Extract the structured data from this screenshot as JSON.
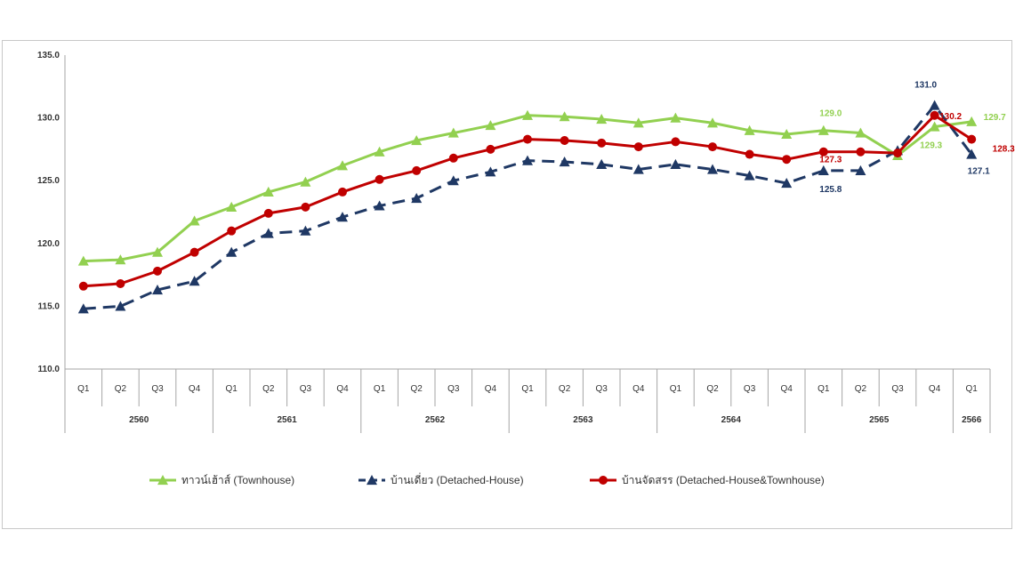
{
  "chart_data": {
    "type": "line",
    "ylim": [
      110.0,
      135.0
    ],
    "yticks": [
      "110.0",
      "115.0",
      "120.0",
      "125.0",
      "130.0",
      "135.0"
    ],
    "categories": [
      "Q1",
      "Q2",
      "Q3",
      "Q4",
      "Q1",
      "Q2",
      "Q3",
      "Q4",
      "Q1",
      "Q2",
      "Q3",
      "Q4",
      "Q1",
      "Q2",
      "Q3",
      "Q4",
      "Q1",
      "Q2",
      "Q3",
      "Q4",
      "Q1",
      "Q2",
      "Q3",
      "Q4",
      "Q1"
    ],
    "years": [
      {
        "label": "2560",
        "count": 4
      },
      {
        "label": "2561",
        "count": 4
      },
      {
        "label": "2562",
        "count": 4
      },
      {
        "label": "2563",
        "count": 4
      },
      {
        "label": "2564",
        "count": 4
      },
      {
        "label": "2565",
        "count": 4
      },
      {
        "label": "2566",
        "count": 1
      }
    ],
    "grid": false,
    "legend_position": "bottom",
    "series": [
      {
        "name": "ทาวน์เฮ้าส์ (Townhouse)",
        "color": "#92d050",
        "marker": "triangle",
        "dash": false,
        "values": [
          118.6,
          118.7,
          119.3,
          121.8,
          122.9,
          124.1,
          124.9,
          126.2,
          127.3,
          128.2,
          128.8,
          129.4,
          130.2,
          130.1,
          129.9,
          129.6,
          130.0,
          129.6,
          129.0,
          128.7,
          129.0,
          128.8,
          127.0,
          129.3,
          129.7
        ],
        "labels": [
          {
            "index": 20,
            "text": "129.0"
          },
          {
            "index": 23,
            "text": "129.3"
          },
          {
            "index": 24,
            "text": "129.7"
          }
        ]
      },
      {
        "name": "บ้านเดี่ยว (Detached-House)",
        "color": "#1f3864",
        "marker": "triangle",
        "dash": true,
        "values": [
          114.8,
          115.0,
          116.3,
          117.0,
          119.3,
          120.8,
          121.0,
          122.1,
          123.0,
          123.6,
          125.0,
          125.7,
          126.6,
          126.5,
          126.3,
          125.9,
          126.3,
          125.9,
          125.4,
          124.8,
          125.8,
          125.8,
          127.4,
          131.0,
          127.1
        ],
        "labels": [
          {
            "index": 20,
            "text": "125.8"
          },
          {
            "index": 23,
            "text": "131.0"
          },
          {
            "index": 24,
            "text": "127.1"
          }
        ]
      },
      {
        "name": "บ้านจัดสรร (Detached-House&Townhouse)",
        "color": "#c00000",
        "marker": "circle",
        "dash": false,
        "values": [
          116.6,
          116.8,
          117.8,
          119.3,
          121.0,
          122.4,
          122.9,
          124.1,
          125.1,
          125.8,
          126.8,
          127.5,
          128.3,
          128.2,
          128.0,
          127.7,
          128.1,
          127.7,
          127.1,
          126.7,
          127.3,
          127.3,
          127.2,
          130.2,
          128.3
        ],
        "labels": [
          {
            "index": 20,
            "text": "127.3"
          },
          {
            "index": 23,
            "text": "130.2"
          },
          {
            "index": 24,
            "text": "128.3"
          }
        ]
      }
    ]
  }
}
